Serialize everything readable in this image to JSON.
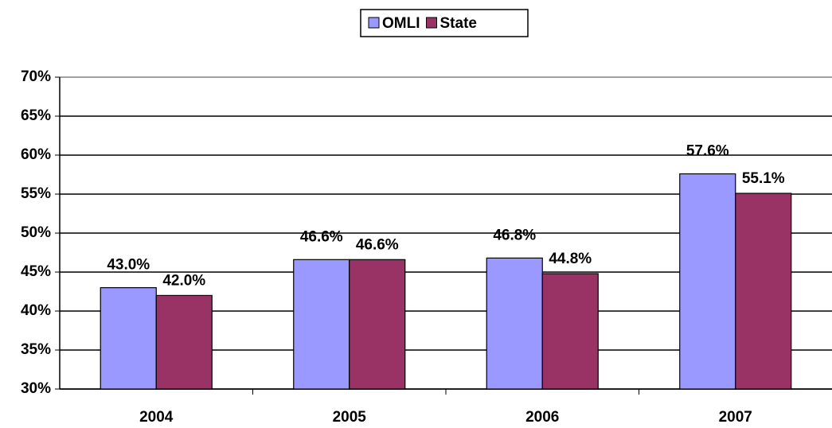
{
  "chart_data": {
    "type": "bar",
    "categories": [
      "2004",
      "2005",
      "2006",
      "2007"
    ],
    "series": [
      {
        "name": "OMLI",
        "color": "#9999ff",
        "values": [
          43.0,
          46.6,
          46.8,
          57.6
        ],
        "value_labels": [
          "43.0%",
          "46.6%",
          "46.8%",
          "57.6%"
        ]
      },
      {
        "name": "State",
        "color": "#993366",
        "values": [
          42.0,
          46.6,
          44.8,
          55.1
        ],
        "value_labels": [
          "42.0%",
          "46.6%",
          "44.8%",
          "55.1%"
        ]
      }
    ],
    "ylim": [
      30,
      70
    ],
    "yticks": [
      {
        "value": 30,
        "label": "30%"
      },
      {
        "value": 35,
        "label": "35%"
      },
      {
        "value": 40,
        "label": "40%"
      },
      {
        "value": 45,
        "label": "45%"
      },
      {
        "value": 50,
        "label": "50%"
      },
      {
        "value": 55,
        "label": "55%"
      },
      {
        "value": 60,
        "label": "60%"
      },
      {
        "value": 65,
        "label": "65%"
      },
      {
        "value": 70,
        "label": "70%"
      }
    ],
    "grid": true,
    "legend": "top"
  }
}
